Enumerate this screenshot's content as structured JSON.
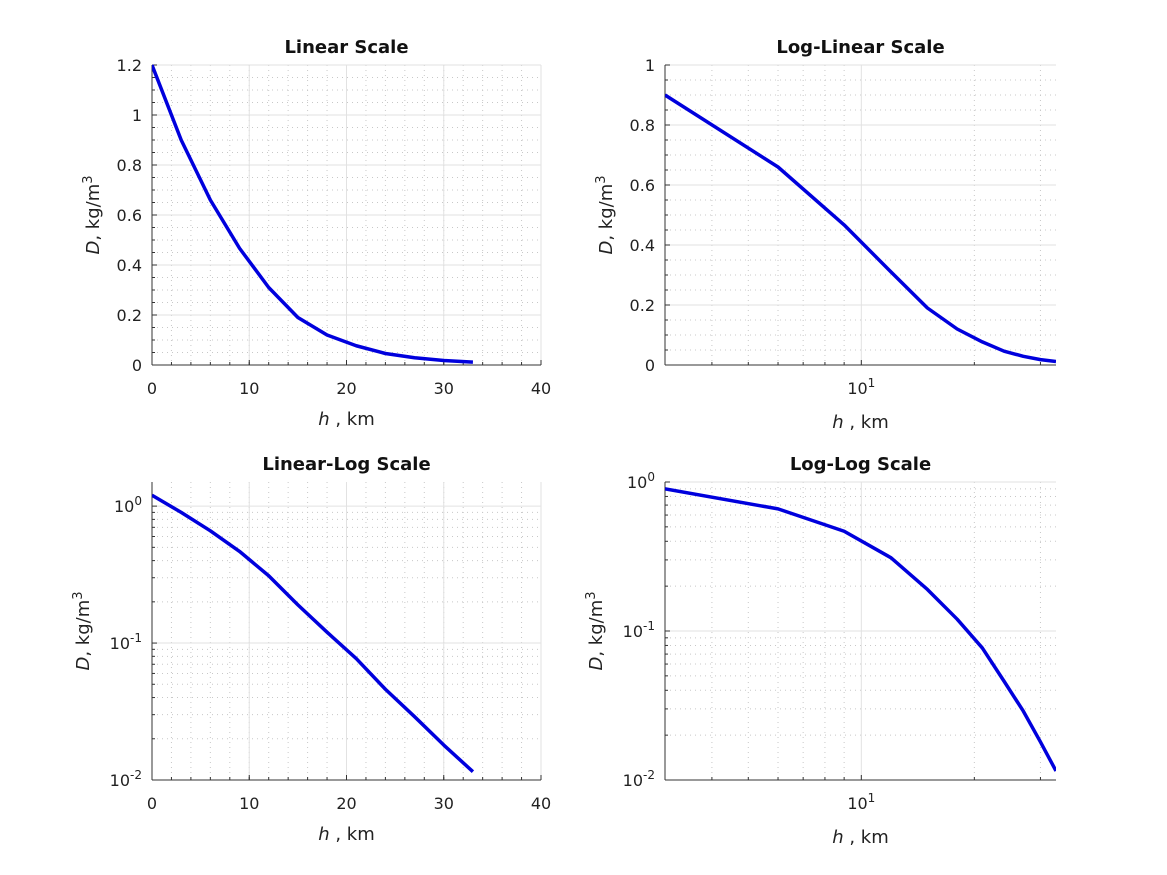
{
  "figure": {
    "line_color": "#0000dd",
    "xlabel_var": "h",
    "xlabel_unit": " , km",
    "ylabel_var": "D",
    "ylabel_unit": ", kg/m",
    "ylabel_sup": "3"
  },
  "chart_data": [
    {
      "type": "line",
      "title": "Linear Scale",
      "xscale": "linear",
      "yscale": "linear",
      "xlim": [
        0,
        40
      ],
      "ylim": [
        0,
        1.2
      ],
      "xticks": [
        0,
        10,
        20,
        30,
        40
      ],
      "xtick_labels": [
        "0",
        "10",
        "20",
        "30",
        "40"
      ],
      "yticks": [
        0,
        0.2,
        0.4,
        0.6,
        0.8,
        1,
        1.2
      ],
      "ytick_labels": [
        "0",
        "0.2",
        "0.4",
        "0.6",
        "0.8",
        "1",
        "1.2"
      ],
      "grid": true,
      "minor_grid": true,
      "series": [
        {
          "x": [
            0,
            3,
            6,
            9,
            12,
            15,
            18,
            21,
            24,
            27,
            30,
            33
          ],
          "y": [
            1.2,
            0.9,
            0.66,
            0.467,
            0.31,
            0.19,
            0.12,
            0.077,
            0.046,
            0.029,
            0.018,
            0.0115
          ]
        }
      ]
    },
    {
      "type": "line",
      "title": "Log-Linear Scale",
      "xscale": "log",
      "yscale": "linear",
      "xlim": [
        3,
        33
      ],
      "ylim": [
        0,
        1
      ],
      "xticks": [
        10
      ],
      "xtick_labels": [
        "10^1"
      ],
      "yticks": [
        0,
        0.2,
        0.4,
        0.6,
        0.8,
        1
      ],
      "ytick_labels": [
        "0",
        "0.2",
        "0.4",
        "0.6",
        "0.8",
        "1"
      ],
      "grid": true,
      "minor_grid": true,
      "series": [
        {
          "x": [
            3,
            6,
            9,
            12,
            15,
            18,
            21,
            24,
            27,
            30,
            33
          ],
          "y": [
            0.9,
            0.66,
            0.467,
            0.31,
            0.19,
            0.12,
            0.077,
            0.046,
            0.029,
            0.018,
            0.0115
          ]
        }
      ]
    },
    {
      "type": "line",
      "title": "Linear-Log Scale",
      "xscale": "linear",
      "yscale": "log",
      "xlim": [
        0,
        40
      ],
      "ylim": [
        0.01,
        1.5
      ],
      "xticks": [
        0,
        10,
        20,
        30,
        40
      ],
      "xtick_labels": [
        "0",
        "10",
        "20",
        "30",
        "40"
      ],
      "yticks": [
        0.01,
        0.1,
        1
      ],
      "ytick_labels": [
        "10^-2",
        "10^-1",
        "10^0"
      ],
      "grid": true,
      "minor_grid": true,
      "series": [
        {
          "x": [
            0,
            3,
            6,
            9,
            12,
            15,
            18,
            21,
            24,
            27,
            30,
            33
          ],
          "y": [
            1.2,
            0.9,
            0.66,
            0.467,
            0.31,
            0.19,
            0.12,
            0.077,
            0.046,
            0.029,
            0.018,
            0.0115
          ]
        }
      ]
    },
    {
      "type": "line",
      "title": "Log-Log Scale",
      "xscale": "log",
      "yscale": "log",
      "xlim": [
        3,
        33
      ],
      "ylim": [
        0.01,
        1
      ],
      "xticks": [
        10
      ],
      "xtick_labels": [
        "10^1"
      ],
      "yticks": [
        0.01,
        0.1,
        1
      ],
      "ytick_labels": [
        "10^-2",
        "10^-1",
        "10^0"
      ],
      "grid": true,
      "minor_grid": true,
      "series": [
        {
          "x": [
            3,
            6,
            9,
            12,
            15,
            18,
            21,
            24,
            27,
            30,
            33
          ],
          "y": [
            0.9,
            0.66,
            0.467,
            0.31,
            0.19,
            0.12,
            0.077,
            0.046,
            0.029,
            0.018,
            0.0115
          ]
        }
      ]
    }
  ]
}
